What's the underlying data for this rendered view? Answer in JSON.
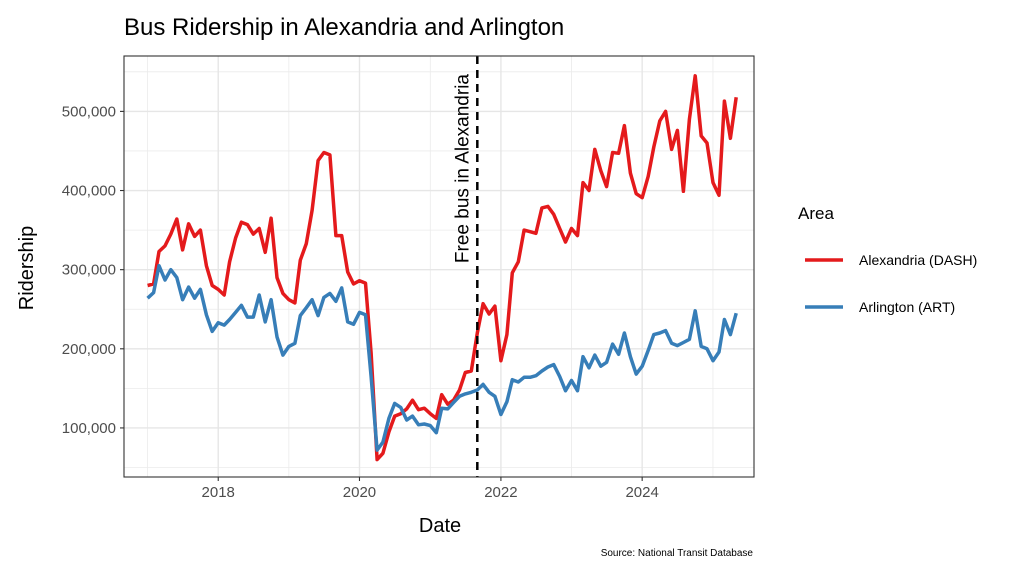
{
  "chart_data": {
    "type": "line",
    "title": "Bus Ridership in Alexandria and Arlington",
    "xlabel": "Date",
    "ylabel": "Ridership",
    "caption": "Source: National Transit Database",
    "xlim": [
      "2016-09-01",
      "2025-08-01"
    ],
    "ylim": [
      38000,
      570000
    ],
    "x_ticks": [
      "2018-01-01",
      "2020-01-01",
      "2022-01-01",
      "2024-01-01"
    ],
    "x_tick_labels": [
      "2018",
      "2020",
      "2022",
      "2024"
    ],
    "y_ticks": [
      100000,
      200000,
      300000,
      400000,
      500000
    ],
    "y_tick_labels": [
      "100,000",
      "200,000",
      "300,000",
      "400,000",
      "500,000"
    ],
    "grid": true,
    "legend": {
      "title": "Area",
      "position": "right"
    },
    "annotation": {
      "x": "2021-09-01",
      "label": "Free bus in Alexandria",
      "style": "dashed vertical line"
    },
    "series": [
      {
        "name": "Alexandria (DASH)",
        "color": "#E41A1C",
        "points": [
          [
            "2017-01-01",
            280000
          ],
          [
            "2017-02-01",
            282000
          ],
          [
            "2017-03-01",
            323000
          ],
          [
            "2017-04-01",
            330000
          ],
          [
            "2017-05-01",
            345000
          ],
          [
            "2017-06-01",
            364000
          ],
          [
            "2017-07-01",
            325000
          ],
          [
            "2017-08-01",
            358000
          ],
          [
            "2017-09-01",
            342000
          ],
          [
            "2017-10-01",
            350000
          ],
          [
            "2017-11-01",
            305000
          ],
          [
            "2017-12-01",
            280000
          ],
          [
            "2018-01-01",
            275000
          ],
          [
            "2018-02-01",
            268000
          ],
          [
            "2018-03-01",
            310000
          ],
          [
            "2018-04-01",
            340000
          ],
          [
            "2018-05-01",
            360000
          ],
          [
            "2018-06-01",
            357000
          ],
          [
            "2018-07-01",
            345000
          ],
          [
            "2018-08-01",
            352000
          ],
          [
            "2018-09-01",
            322000
          ],
          [
            "2018-10-01",
            365000
          ],
          [
            "2018-11-01",
            290000
          ],
          [
            "2018-12-01",
            270000
          ],
          [
            "2019-01-01",
            262000
          ],
          [
            "2019-02-01",
            258000
          ],
          [
            "2019-03-01",
            312000
          ],
          [
            "2019-04-01",
            333000
          ],
          [
            "2019-05-01",
            375000
          ],
          [
            "2019-06-01",
            438000
          ],
          [
            "2019-07-01",
            448000
          ],
          [
            "2019-08-01",
            445000
          ],
          [
            "2019-09-01",
            343000
          ],
          [
            "2019-10-01",
            343000
          ],
          [
            "2019-11-01",
            297000
          ],
          [
            "2019-12-01",
            282000
          ],
          [
            "2020-01-01",
            286000
          ],
          [
            "2020-02-01",
            283000
          ],
          [
            "2020-03-01",
            195000
          ],
          [
            "2020-04-01",
            60000
          ],
          [
            "2020-05-01",
            68000
          ],
          [
            "2020-06-01",
            95000
          ],
          [
            "2020-07-01",
            115000
          ],
          [
            "2020-08-01",
            118000
          ],
          [
            "2020-09-01",
            124000
          ],
          [
            "2020-10-01",
            135000
          ],
          [
            "2020-11-01",
            123000
          ],
          [
            "2020-12-01",
            125000
          ],
          [
            "2021-01-01",
            118000
          ],
          [
            "2021-02-01",
            112000
          ],
          [
            "2021-03-01",
            142000
          ],
          [
            "2021-04-01",
            130000
          ],
          [
            "2021-05-01",
            135000
          ],
          [
            "2021-06-01",
            148000
          ],
          [
            "2021-07-01",
            170000
          ],
          [
            "2021-08-01",
            172000
          ],
          [
            "2021-09-01",
            220000
          ],
          [
            "2021-10-01",
            257000
          ],
          [
            "2021-11-01",
            244000
          ],
          [
            "2021-12-01",
            254000
          ],
          [
            "2022-01-01",
            185000
          ],
          [
            "2022-02-01",
            218000
          ],
          [
            "2022-03-01",
            296000
          ],
          [
            "2022-04-01",
            310000
          ],
          [
            "2022-05-01",
            350000
          ],
          [
            "2022-06-01",
            348000
          ],
          [
            "2022-07-01",
            346000
          ],
          [
            "2022-08-01",
            378000
          ],
          [
            "2022-09-01",
            380000
          ],
          [
            "2022-10-01",
            370000
          ],
          [
            "2022-11-01",
            352000
          ],
          [
            "2022-12-01",
            335000
          ],
          [
            "2023-01-01",
            352000
          ],
          [
            "2023-02-01",
            343000
          ],
          [
            "2023-03-01",
            410000
          ],
          [
            "2023-04-01",
            400000
          ],
          [
            "2023-05-01",
            452000
          ],
          [
            "2023-06-01",
            425000
          ],
          [
            "2023-07-01",
            405000
          ],
          [
            "2023-08-01",
            448000
          ],
          [
            "2023-09-01",
            447000
          ],
          [
            "2023-10-01",
            482000
          ],
          [
            "2023-11-01",
            422000
          ],
          [
            "2023-12-01",
            396000
          ],
          [
            "2024-01-01",
            391000
          ],
          [
            "2024-02-01",
            418000
          ],
          [
            "2024-03-01",
            455000
          ],
          [
            "2024-04-01",
            488000
          ],
          [
            "2024-05-01",
            500000
          ],
          [
            "2024-06-01",
            452000
          ],
          [
            "2024-07-01",
            476000
          ],
          [
            "2024-08-01",
            399000
          ],
          [
            "2024-09-01",
            490000
          ],
          [
            "2024-10-01",
            545000
          ],
          [
            "2024-11-01",
            469000
          ],
          [
            "2024-12-01",
            460000
          ],
          [
            "2025-01-01",
            410000
          ],
          [
            "2025-02-01",
            394000
          ],
          [
            "2025-03-01",
            513000
          ],
          [
            "2025-04-01",
            466000
          ],
          [
            "2025-05-01",
            518000
          ]
        ]
      },
      {
        "name": "Arlington (ART)",
        "color": "#377EB8",
        "points": [
          [
            "2017-01-01",
            264000
          ],
          [
            "2017-02-01",
            271000
          ],
          [
            "2017-03-01",
            305000
          ],
          [
            "2017-04-01",
            287000
          ],
          [
            "2017-05-01",
            300000
          ],
          [
            "2017-06-01",
            290000
          ],
          [
            "2017-07-01",
            262000
          ],
          [
            "2017-08-01",
            278000
          ],
          [
            "2017-09-01",
            264000
          ],
          [
            "2017-10-01",
            275000
          ],
          [
            "2017-11-01",
            243000
          ],
          [
            "2017-12-01",
            222000
          ],
          [
            "2018-01-01",
            233000
          ],
          [
            "2018-02-01",
            230000
          ],
          [
            "2018-03-01",
            237000
          ],
          [
            "2018-04-01",
            246000
          ],
          [
            "2018-05-01",
            255000
          ],
          [
            "2018-06-01",
            240000
          ],
          [
            "2018-07-01",
            240000
          ],
          [
            "2018-08-01",
            268000
          ],
          [
            "2018-09-01",
            234000
          ],
          [
            "2018-10-01",
            262000
          ],
          [
            "2018-11-01",
            215000
          ],
          [
            "2018-12-01",
            192000
          ],
          [
            "2019-01-01",
            203000
          ],
          [
            "2019-02-01",
            207000
          ],
          [
            "2019-03-01",
            242000
          ],
          [
            "2019-04-01",
            252000
          ],
          [
            "2019-05-01",
            262000
          ],
          [
            "2019-06-01",
            242000
          ],
          [
            "2019-07-01",
            265000
          ],
          [
            "2019-08-01",
            270000
          ],
          [
            "2019-09-01",
            260000
          ],
          [
            "2019-10-01",
            277000
          ],
          [
            "2019-11-01",
            234000
          ],
          [
            "2019-12-01",
            231000
          ],
          [
            "2020-01-01",
            246000
          ],
          [
            "2020-02-01",
            243000
          ],
          [
            "2020-03-01",
            165000
          ],
          [
            "2020-04-01",
            72000
          ],
          [
            "2020-05-01",
            82000
          ],
          [
            "2020-06-01",
            112000
          ],
          [
            "2020-07-01",
            131000
          ],
          [
            "2020-08-01",
            126000
          ],
          [
            "2020-09-01",
            110000
          ],
          [
            "2020-10-01",
            115000
          ],
          [
            "2020-11-01",
            104000
          ],
          [
            "2020-12-01",
            105000
          ],
          [
            "2021-01-01",
            103000
          ],
          [
            "2021-02-01",
            94000
          ],
          [
            "2021-03-01",
            125000
          ],
          [
            "2021-04-01",
            124000
          ],
          [
            "2021-05-01",
            132000
          ],
          [
            "2021-06-01",
            140000
          ],
          [
            "2021-07-01",
            143000
          ],
          [
            "2021-08-01",
            145000
          ],
          [
            "2021-09-01",
            148000
          ],
          [
            "2021-10-01",
            155000
          ],
          [
            "2021-11-01",
            145000
          ],
          [
            "2021-12-01",
            140000
          ],
          [
            "2022-01-01",
            117000
          ],
          [
            "2022-02-01",
            133000
          ],
          [
            "2022-03-01",
            161000
          ],
          [
            "2022-04-01",
            158000
          ],
          [
            "2022-05-01",
            164000
          ],
          [
            "2022-06-01",
            164000
          ],
          [
            "2022-07-01",
            166000
          ],
          [
            "2022-08-01",
            172000
          ],
          [
            "2022-09-01",
            177000
          ],
          [
            "2022-10-01",
            180000
          ],
          [
            "2022-11-01",
            165000
          ],
          [
            "2022-12-01",
            147000
          ],
          [
            "2023-01-01",
            160000
          ],
          [
            "2023-02-01",
            147000
          ],
          [
            "2023-03-01",
            190000
          ],
          [
            "2023-04-01",
            176000
          ],
          [
            "2023-05-01",
            192000
          ],
          [
            "2023-06-01",
            178000
          ],
          [
            "2023-07-01",
            183000
          ],
          [
            "2023-08-01",
            206000
          ],
          [
            "2023-09-01",
            193000
          ],
          [
            "2023-10-01",
            220000
          ],
          [
            "2023-11-01",
            190000
          ],
          [
            "2023-12-01",
            168000
          ],
          [
            "2024-01-01",
            178000
          ],
          [
            "2024-02-01",
            198000
          ],
          [
            "2024-03-01",
            218000
          ],
          [
            "2024-04-01",
            220000
          ],
          [
            "2024-05-01",
            223000
          ],
          [
            "2024-06-01",
            207000
          ],
          [
            "2024-07-01",
            204000
          ],
          [
            "2024-08-01",
            208000
          ],
          [
            "2024-09-01",
            212000
          ],
          [
            "2024-10-01",
            248000
          ],
          [
            "2024-11-01",
            203000
          ],
          [
            "2024-12-01",
            200000
          ],
          [
            "2025-01-01",
            185000
          ],
          [
            "2025-02-01",
            196000
          ],
          [
            "2025-03-01",
            237000
          ],
          [
            "2025-04-01",
            218000
          ],
          [
            "2025-05-01",
            245000
          ]
        ]
      }
    ]
  }
}
